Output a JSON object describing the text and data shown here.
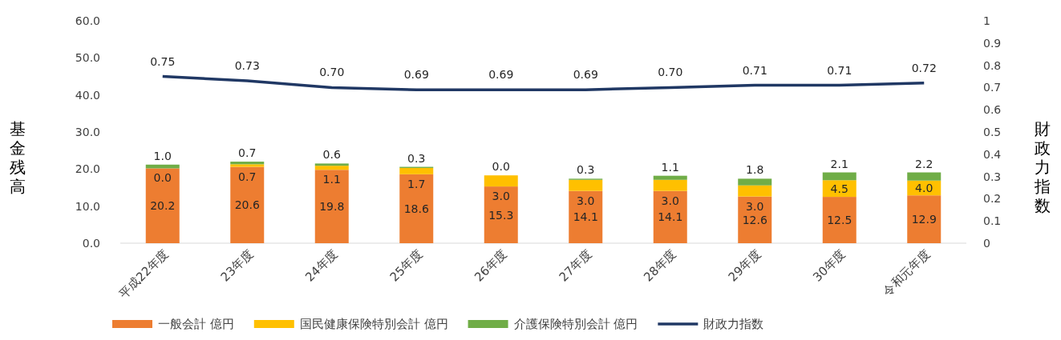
{
  "chart_data": {
    "type": "bar",
    "stacked": true,
    "legend": "bottom",
    "categories": [
      "平成22年度",
      "23年度",
      "24年度",
      "25年度",
      "26年度",
      "27年度",
      "28年度",
      "29年度",
      "30年度",
      "令和元年度"
    ],
    "ylabel": "基金残高",
    "y2label": "財政力指数",
    "ylim": [
      0,
      60
    ],
    "yticks": [
      {
        "value": 0,
        "label": "0.0"
      },
      {
        "value": 10,
        "label": "10.0"
      },
      {
        "value": 20,
        "label": "20.0"
      },
      {
        "value": 30,
        "label": "30.0"
      },
      {
        "value": 40,
        "label": "40.0"
      },
      {
        "value": 50,
        "label": "50.0"
      },
      {
        "value": 60,
        "label": "60.0"
      }
    ],
    "y2lim": [
      0,
      1
    ],
    "y2ticks": [
      0,
      0.1,
      0.2,
      0.3,
      0.4,
      0.5,
      0.6,
      0.7,
      0.8,
      0.9,
      1
    ],
    "series": [
      {
        "name": "一般会計 億円",
        "color": "#ed7d31",
        "values": [
          20.2,
          20.6,
          19.8,
          18.6,
          15.3,
          14.1,
          14.1,
          12.6,
          12.5,
          12.9
        ],
        "value_labels": [
          "20.2",
          "20.6",
          "19.8",
          "18.6",
          "15.3",
          "14.1",
          "14.1",
          "12.6",
          "12.5",
          "12.9"
        ]
      },
      {
        "name": "国民健康保険特別会計 億円",
        "color": "#ffc000",
        "values": [
          0,
          0.7,
          1.1,
          1.7,
          3,
          3,
          3,
          3,
          4.5,
          4
        ],
        "value_labels": [
          "0.0",
          "0.7",
          "1.1",
          "1.7",
          "3.0",
          "3.0",
          "3.0",
          "3.0",
          "4.5",
          "4.0"
        ]
      },
      {
        "name": "介護保険特別会計 億円",
        "color": "#70ad47",
        "values": [
          1,
          0.7,
          0.6,
          0.3,
          0,
          0.3,
          1.1,
          1.8,
          2.1,
          2.2
        ],
        "value_labels": [
          "1.0",
          "0.7",
          "0.6",
          "0.3",
          "0.0",
          "0.3",
          "1.1",
          "1.8",
          "2.1",
          "2.2"
        ]
      },
      {
        "name": "財政力指数",
        "type": "line",
        "axis": "y2",
        "color": "#203864",
        "values": [
          0.75,
          0.73,
          0.7,
          0.69,
          0.69,
          0.69,
          0.7,
          0.71,
          0.71,
          0.72
        ],
        "value_labels": [
          "0.75",
          "0.73",
          "0.70",
          "0.69",
          "0.69",
          "0.69",
          "0.70",
          "0.71",
          "0.71",
          "0.72"
        ]
      }
    ]
  }
}
